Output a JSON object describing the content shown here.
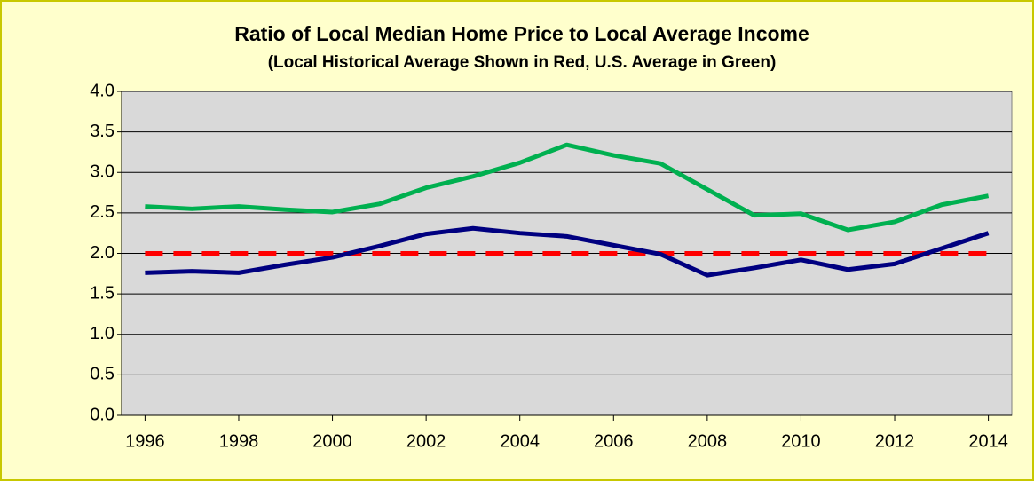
{
  "chart_data": {
    "type": "line",
    "title": "Ratio of Local Median Home Price to Local Average Income",
    "subtitle": "(Local Historical Average Shown in Red, U.S. Average in Green)",
    "x": [
      1996,
      1997,
      1998,
      1999,
      2000,
      2001,
      2002,
      2003,
      2004,
      2005,
      2006,
      2007,
      2008,
      2009,
      2010,
      2011,
      2012,
      2013,
      2014
    ],
    "xlim": [
      1995.5,
      2014.5
    ],
    "xticks": [
      1996,
      1998,
      2000,
      2002,
      2004,
      2006,
      2008,
      2010,
      2012,
      2014
    ],
    "ylim": [
      0,
      4
    ],
    "yticks": [
      {
        "value": 0,
        "label": "0.0"
      },
      0.5,
      {
        "value": 1,
        "label": "1.0"
      },
      1.5,
      {
        "value": 2,
        "label": "2.0"
      },
      2.5,
      {
        "value": 3,
        "label": "3.0"
      },
      3.5,
      {
        "value": 4,
        "label": "4.0"
      }
    ],
    "grid": true,
    "series": [
      {
        "color": "#ff0000",
        "dashed": true,
        "values": [
          2,
          2,
          2,
          2,
          2,
          2,
          2,
          2,
          2,
          2,
          2,
          2,
          2,
          2,
          2,
          2,
          2,
          2,
          2
        ]
      },
      {
        "color": "#00b050",
        "values": [
          2.58,
          2.55,
          2.58,
          2.54,
          2.51,
          2.61,
          2.81,
          2.95,
          3.12,
          3.34,
          3.21,
          3.11,
          2.79,
          2.47,
          2.49,
          2.29,
          2.39,
          2.6,
          2.71
        ]
      },
      {
        "color": "#000080",
        "values": [
          1.76,
          1.78,
          1.76,
          1.86,
          1.95,
          2.09,
          2.24,
          2.31,
          2.25,
          2.21,
          2.1,
          1.99,
          1.73,
          1.82,
          1.92,
          1.8,
          1.87,
          2.06,
          2.25
        ]
      }
    ]
  }
}
